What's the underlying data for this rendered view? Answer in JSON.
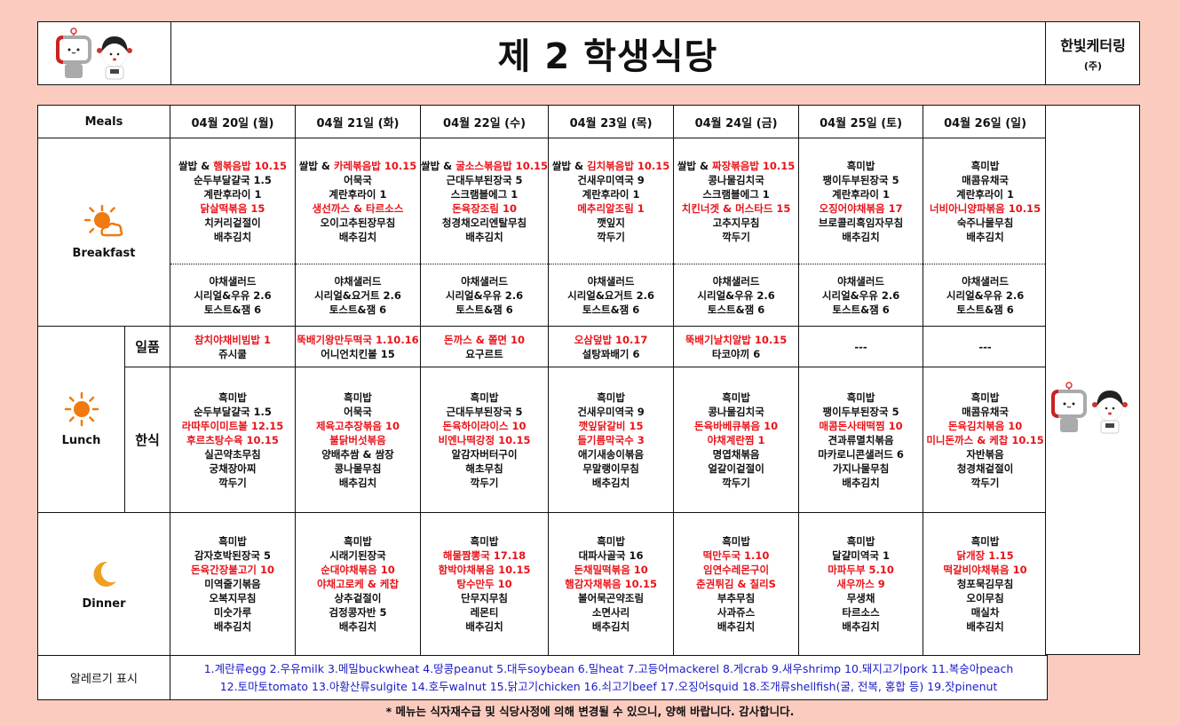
{
  "header": {
    "title": "제 2 학생식당",
    "company": "한빛케터링",
    "company_suffix": "(주)"
  },
  "colors": {
    "red": "#e8141a",
    "blue": "#1a1ac8",
    "background": "#fbcbbf"
  },
  "table": {
    "meals_label": "Meals",
    "breakfast_label": "Breakfast",
    "lunch_label": "Lunch",
    "dinner_label": "Dinner",
    "lunch_sub": [
      "일품",
      "한식"
    ],
    "allergy_label": "알레르기 표시",
    "allergy_lines": [
      "1.계란류egg 2.우유milk 3.메밀buckwheat 4.땅콩peanut 5.대두soybean 6.밀heat 7.고등어mackerel 8.게crab 9.새우shrimp 10.돼지고기pork 11.복숭아peach",
      "12.토마토tomato 13.아황산류sulgite 14.호두walnut 15.닭고기chicken 16.쇠고기beef 17.오징어squid 18.조개류shellfish(굴, 전복, 홍합 등) 19.잣pinenut"
    ]
  },
  "days": [
    {
      "date": "04월 20일 (월)",
      "breakfast": [
        {
          "p": "쌀밥 & ",
          "t": "햄볶음밥 10.15",
          "red": true
        },
        "순두부달걀국 1.5",
        "계란후라이 1",
        {
          "t": "닭살떡볶음 15",
          "red": true
        },
        "치커리겉절이",
        "배추김치"
      ],
      "breakfast_extra": [
        "야채샐러드",
        "시리얼&우유 2.6",
        "토스트&잼 6"
      ],
      "ilpum": [
        {
          "t": "참치야채비빔밥 1",
          "red": true
        },
        "쥬시쿨"
      ],
      "hansik": [
        "흑미밥",
        "순두부달걀국 1.5",
        {
          "t": "라따뚜이미트볼 12.15",
          "red": true
        },
        {
          "t": "후르츠탕수육 10.15",
          "red": true
        },
        "실곤약초무침",
        "궁채장아찌",
        "깍두기"
      ],
      "dinner": [
        "흑미밥",
        "감자호박된장국 5",
        {
          "t": "돈육간장불고기 10",
          "red": true
        },
        "미역줄기볶음",
        "오복지무침",
        "미숫가루",
        "배추김치"
      ]
    },
    {
      "date": "04월 21일 (화)",
      "breakfast": [
        {
          "p": "쌀밥 & ",
          "t": "카레볶음밥 10.15",
          "red": true
        },
        "어묵국",
        "계란후라이 1",
        {
          "t": "생선까스 & 타르소스",
          "red": true
        },
        "오이고추된장무침",
        "배추김치"
      ],
      "breakfast_extra": [
        "야채샐러드",
        "시리얼&요거트 2.6",
        "토스트&잼 6"
      ],
      "ilpum": [
        {
          "t": "뚝배기왕만두떡국 1.10.16",
          "red": true
        },
        "어니언치킨볼 15"
      ],
      "hansik": [
        "흑미밥",
        "어묵국",
        {
          "t": "제육고추장볶음 10",
          "red": true
        },
        {
          "t": "불닭버섯볶음",
          "red": true
        },
        "양배추쌈 & 쌈장",
        "콩나물무침",
        "배추김치"
      ],
      "dinner": [
        "흑미밥",
        "시래기된장국",
        {
          "t": "순대야채볶음 10",
          "red": true
        },
        {
          "t": "야채고로케 & 케찹",
          "red": true
        },
        "상추겉절이",
        "검정콩자반 5",
        "배추김치"
      ]
    },
    {
      "date": "04월 22일 (수)",
      "breakfast": [
        {
          "p": "쌀밥 & ",
          "t": "굴소스볶음밥 10.15",
          "red": true
        },
        "근대두부된장국 5",
        "스크램블에그 1",
        {
          "t": "돈육장조림 10",
          "red": true
        },
        "청경채오리엔탈무침",
        "배추김치"
      ],
      "breakfast_extra": [
        "야채샐러드",
        "시리얼&우유 2.6",
        "토스트&잼 6"
      ],
      "ilpum": [
        {
          "t": "돈까스 & 쫄면 10",
          "red": true
        },
        "요구르트"
      ],
      "hansik": [
        "흑미밥",
        "근대두부된장국 5",
        {
          "t": "돈육하이라이스 10",
          "red": true
        },
        {
          "t": "비엔나떡강정 10.15",
          "red": true
        },
        "알감자버터구이",
        "해초무침",
        "깍두기"
      ],
      "dinner": [
        "흑미밥",
        {
          "t": "해물짬뽕국 17.18",
          "red": true
        },
        {
          "t": "함박야채볶음 10.15",
          "red": true
        },
        {
          "t": "탕수만두 10",
          "red": true
        },
        "단무지무침",
        "레몬티",
        "배추김치"
      ]
    },
    {
      "date": "04월 23일 (목)",
      "breakfast": [
        {
          "p": "쌀밥 & ",
          "t": "김치볶음밥 10.15",
          "red": true
        },
        "건새우미역국 9",
        "계란후라이 1",
        {
          "t": "메추리알조림 1",
          "red": true
        },
        "깻잎지",
        "깍두기"
      ],
      "breakfast_extra": [
        "야채샐러드",
        "시리얼&요거트 2.6",
        "토스트&잼 6"
      ],
      "ilpum": [
        {
          "t": "오삼덮밥 10.17",
          "red": true
        },
        "설탕꽈배기 6"
      ],
      "hansik": [
        "흑미밥",
        "건새우미역국 9",
        {
          "t": "깻잎닭갈비 15",
          "red": true
        },
        {
          "t": "들기름막국수 3",
          "red": true
        },
        "애기새송이볶음",
        "무말랭이무침",
        "배추김치"
      ],
      "dinner": [
        "흑미밥",
        "대파사골국 16",
        {
          "t": "돈채밀떡볶음 10",
          "red": true
        },
        {
          "t": "햄감자채볶음 10.15",
          "red": true
        },
        "볼어묵곤약조림",
        "소면사리",
        "배추김치"
      ]
    },
    {
      "date": "04월 24일 (금)",
      "breakfast": [
        {
          "p": "쌀밥 & ",
          "t": "짜장볶음밥 10.15",
          "red": true
        },
        "콩나물김치국",
        "스크램블에그 1",
        {
          "t": "치킨너겟 & 머스타드 15",
          "red": true
        },
        "고추지무침",
        "깍두기"
      ],
      "breakfast_extra": [
        "야채샐러드",
        "시리얼&우유 2.6",
        "토스트&잼 6"
      ],
      "ilpum": [
        {
          "t": "뚝배기날치알밥 10.15",
          "red": true
        },
        "타코야끼 6"
      ],
      "hansik": [
        "흑미밥",
        "콩나물김치국",
        {
          "t": "돈육바베큐볶음 10",
          "red": true
        },
        {
          "t": "야채계란찜 1",
          "red": true
        },
        "명엽채볶음",
        "얼갈이겉절이",
        "깍두기"
      ],
      "dinner": [
        "흑미밥",
        {
          "t": "떡만두국 1.10",
          "red": true
        },
        {
          "t": "임연수레몬구이",
          "red": true
        },
        {
          "t": "춘권튀김 & 칠리S",
          "red": true
        },
        "부추무침",
        "사과쥬스",
        "배추김치"
      ]
    },
    {
      "date": "04월 25일 (토)",
      "breakfast": [
        "흑미밥",
        "팽이두부된장국 5",
        "계란후라이 1",
        {
          "t": "오징어야채볶음 17",
          "red": true
        },
        "브로콜리흑임자무침",
        "배추김치"
      ],
      "breakfast_extra": [
        "야채샐러드",
        "시리얼&우유 2.6",
        "토스트&잼 6"
      ],
      "ilpum": [
        "---"
      ],
      "hansik": [
        "흑미밥",
        "팽이두부된장국 5",
        {
          "t": "매콤돈사태떡찜 10",
          "red": true
        },
        "견과류멸치볶음",
        "마카로니콘샐러드 6",
        "가지나물무침",
        "배추김치"
      ],
      "dinner": [
        "흑미밥",
        "달걀미역국 1",
        {
          "t": "마파두부 5.10",
          "red": true
        },
        {
          "t": "새우까스 9",
          "red": true
        },
        "무생채",
        "타르소스",
        "배추김치"
      ]
    },
    {
      "date": "04월 26일 (일)",
      "breakfast": [
        "흑미밥",
        "매콤유채국",
        "계란후라이 1",
        {
          "t": "너비아니양파볶음 10.15",
          "red": true
        },
        "숙주나물무침",
        "배추김치"
      ],
      "breakfast_extra": [
        "야채샐러드",
        "시리얼&우유 2.6",
        "토스트&잼 6"
      ],
      "ilpum": [
        "---"
      ],
      "hansik": [
        "흑미밥",
        "매콤유채국",
        {
          "t": "돈육김치볶음 10",
          "red": true
        },
        {
          "t": "미니돈까스 & 케찹 10.15",
          "red": true
        },
        "자반볶음",
        "청경채겉절이",
        "깍두기"
      ],
      "dinner": [
        "흑미밥",
        {
          "t": "닭개장 1.15",
          "red": true
        },
        {
          "t": "떡갈비야채볶음 10",
          "red": true
        },
        "청포묵김무침",
        "오이무침",
        "매실차",
        "배추김치"
      ]
    }
  ],
  "icons": {
    "breakfast": "sun-cloud-icon",
    "lunch": "sun-icon",
    "dinner": "moon-icon",
    "mascots": "gist-mascots"
  },
  "footer": {
    "notice": "* 메뉴는 식자재수급 및 식당사정에 의해 변경될 수 있으니, 양해 바랍니다. 감사합니다."
  }
}
